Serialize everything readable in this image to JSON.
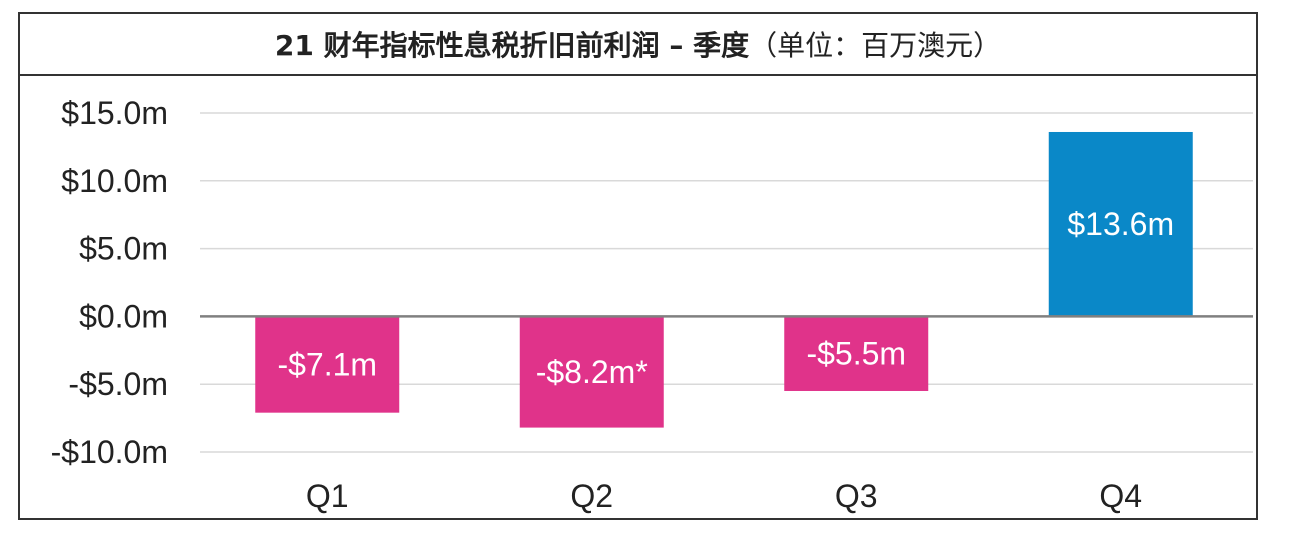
{
  "chart_data": {
    "type": "bar",
    "title_bold": "21 财年指标性息税折旧前利润 – 季度",
    "title_normal": "（单位：百万澳元）",
    "xlabel": "",
    "ylabel": "",
    "categories": [
      "Q1",
      "Q2",
      "Q3",
      "Q4"
    ],
    "values": [
      -7.1,
      -8.2,
      -5.5,
      13.6
    ],
    "data_labels": [
      "-$7.1m",
      "-$8.2m*",
      "-$5.5m",
      "$13.6m"
    ],
    "ylim": [
      -10,
      15
    ],
    "yticks": [
      15,
      10,
      5,
      0,
      -5,
      -10
    ],
    "ytick_labels": [
      "$15.0m",
      "$10.0m",
      "$5.0m",
      "$0.0m",
      "-$5.0m",
      "-$10.0m"
    ],
    "grid": true,
    "colors": {
      "negative": "#e0338a",
      "positive": "#0a88c8",
      "grid": "#d9d9d9",
      "zero_line": "#808080"
    }
  }
}
